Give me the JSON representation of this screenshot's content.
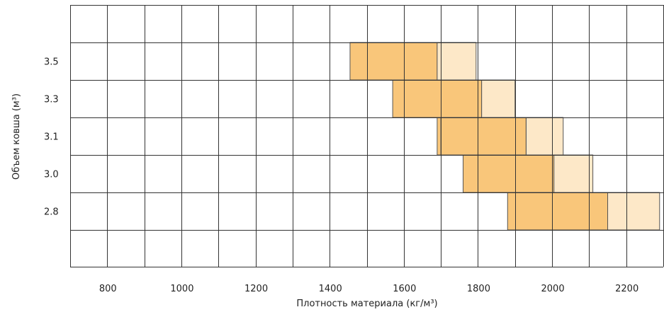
{
  "chart_data": {
    "type": "bar",
    "orientation": "horizontal-range",
    "xlabel": "Плотность материала (кг/м³)",
    "ylabel": "Объем ковша (м³)",
    "xlim": [
      700,
      2300
    ],
    "x_ticks": [
      "800",
      "1000",
      "1200",
      "1400",
      "1600",
      "1800",
      "2000",
      "2200"
    ],
    "x_tick_values": [
      800,
      1000,
      1200,
      1400,
      1600,
      1800,
      2000,
      2200
    ],
    "categories": [
      "3.5",
      "3.3",
      "3.1",
      "3.0",
      "2.8"
    ],
    "grid": true,
    "colors": {
      "dark": "#f9c67a",
      "light": "#fde8c8",
      "stroke": "#555555",
      "grid": "#333333"
    },
    "series": [
      {
        "values": [
          [
            1455,
            1690
          ],
          [
            1570,
            1810
          ],
          [
            1690,
            1930
          ],
          [
            1760,
            2005
          ],
          [
            1880,
            2150
          ]
        ]
      },
      {
        "values": [
          [
            1690,
            1795
          ],
          [
            1810,
            1900
          ],
          [
            1930,
            2030
          ],
          [
            2005,
            2110
          ],
          [
            2150,
            2290
          ]
        ]
      }
    ],
    "overlay_rect": {
      "category": "3.1",
      "range": [
        1700,
        1930
      ]
    }
  }
}
